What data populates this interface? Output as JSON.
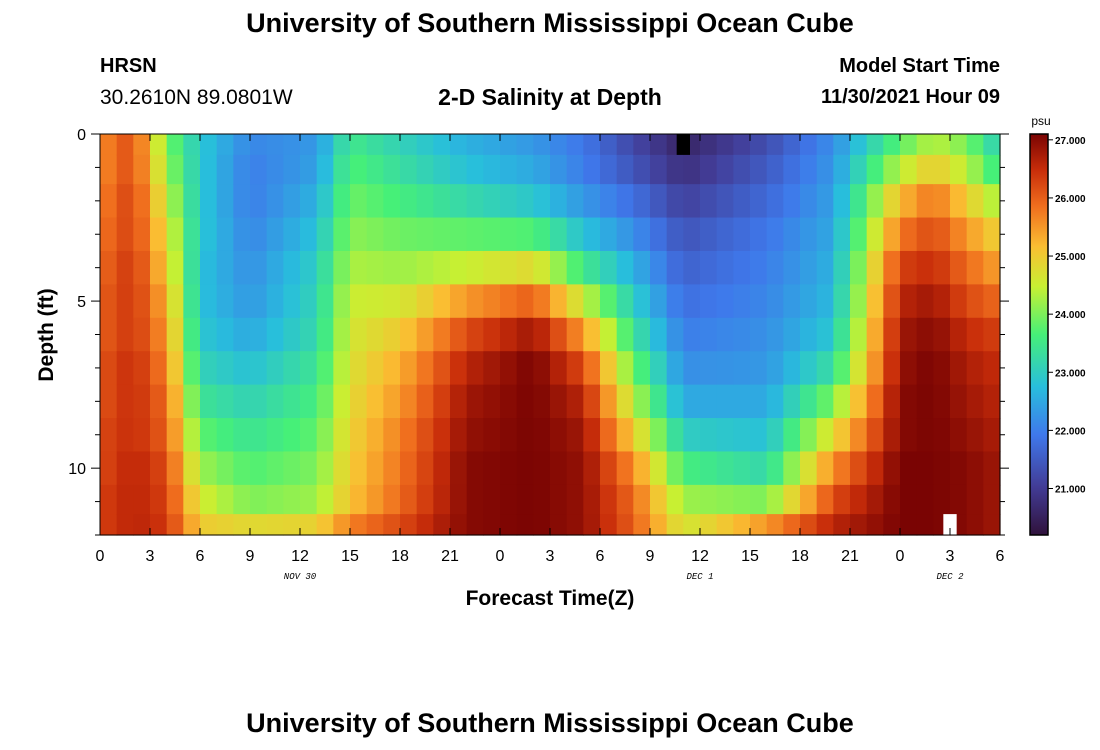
{
  "header": {
    "title": "University of Southern Mississippi Ocean Cube",
    "station": "HRSN",
    "coordinates": "30.2610N  89.0801W",
    "subtitle": "2-D Salinity at Depth",
    "model_start_label": "Model Start Time",
    "model_start_value": "11/30/2021 Hour 09"
  },
  "footer": {
    "title": "University of Southern Mississippi Ocean Cube"
  },
  "chart_data": {
    "type": "heatmap",
    "title": "2-D Salinity at Depth",
    "xlabel": "Forecast Time(Z)",
    "ylabel": "Depth (ft)",
    "x_tick_labels": [
      "0",
      "3",
      "6",
      "9",
      "12",
      "15",
      "18",
      "21",
      "0",
      "3",
      "6",
      "9",
      "12",
      "15",
      "18",
      "21",
      "0",
      "3",
      "6"
    ],
    "x_tick_hours": [
      0,
      3,
      6,
      9,
      12,
      15,
      18,
      21,
      24,
      27,
      30,
      33,
      36,
      39,
      42,
      45,
      48,
      51,
      54
    ],
    "x_range_hours": [
      0,
      54
    ],
    "date_labels": [
      {
        "label": "NOV 30",
        "hour": 12
      },
      {
        "label": "DEC 1",
        "hour": 36
      },
      {
        "label": "DEC 2",
        "hour": 51
      }
    ],
    "y_tick_labels": [
      "0",
      "5",
      "10"
    ],
    "y_tick_values": [
      0,
      5,
      10
    ],
    "y_range_ft": [
      0,
      12
    ],
    "colorbar": {
      "unit": "psu",
      "min": 20.2,
      "max": 27.1,
      "tick_values": [
        21.0,
        22.0,
        23.0,
        24.0,
        25.0,
        26.0,
        27.0
      ],
      "tick_labels": [
        "21.000",
        "22.000",
        "23.000",
        "24.000",
        "25.000",
        "26.000",
        "27.000"
      ]
    },
    "grid": {
      "time_step_hours": 1,
      "depth_rows_ft": [
        0.25,
        1.0,
        2.0,
        3.0,
        4.0,
        5.0,
        6.0,
        7.0,
        8.0,
        9.0,
        10.0,
        11.0,
        11.75
      ],
      "keyframes_hours": [
        0,
        2,
        4,
        6,
        9,
        13,
        15,
        18,
        22,
        26,
        29,
        32,
        35,
        40,
        44,
        48,
        50,
        52,
        54
      ],
      "keyframe_profiles": [
        [
          25.6,
          25.6,
          25.7,
          25.8,
          25.9,
          26.0,
          26.0,
          26.1,
          26.1,
          26.2,
          26.2,
          26.3,
          26.3
        ],
        [
          26.2,
          26.2,
          26.3,
          26.3,
          26.4,
          26.4,
          26.4,
          26.5,
          26.5,
          26.5,
          26.6,
          26.6,
          26.6
        ],
        [
          24.0,
          24.2,
          24.5,
          24.8,
          25.0,
          25.3,
          25.5,
          25.7,
          25.9,
          26.0,
          26.2,
          26.3,
          26.4
        ],
        [
          22.9,
          22.9,
          22.9,
          22.9,
          22.8,
          22.8,
          22.9,
          23.1,
          23.4,
          23.8,
          24.2,
          24.6,
          25.0
        ],
        [
          22.1,
          22.0,
          22.0,
          22.1,
          22.2,
          22.3,
          22.5,
          22.8,
          23.1,
          23.4,
          23.7,
          24.0,
          24.8
        ],
        [
          22.3,
          22.4,
          22.6,
          22.8,
          23.0,
          23.1,
          23.2,
          23.4,
          23.6,
          23.8,
          24.0,
          24.2,
          24.9
        ],
        [
          23.5,
          23.7,
          23.9,
          24.1,
          24.3,
          24.5,
          24.6,
          24.7,
          24.8,
          24.9,
          25.0,
          25.1,
          25.7
        ],
        [
          23.1,
          23.3,
          23.6,
          23.9,
          24.2,
          24.6,
          25.0,
          25.3,
          25.5,
          25.7,
          25.8,
          25.9,
          26.2
        ],
        [
          22.6,
          22.8,
          23.2,
          23.8,
          24.5,
          25.5,
          26.2,
          26.6,
          26.8,
          26.9,
          27.0,
          27.0,
          27.0
        ],
        [
          22.3,
          22.5,
          22.9,
          23.7,
          24.8,
          26.0,
          26.8,
          27.1,
          27.1,
          27.1,
          27.1,
          27.1,
          27.1
        ],
        [
          21.9,
          22.0,
          22.3,
          22.8,
          23.5,
          24.5,
          25.5,
          26.2,
          26.6,
          26.8,
          26.9,
          26.9,
          26.9
        ],
        [
          21.2,
          21.4,
          21.8,
          22.2,
          22.6,
          23.0,
          23.4,
          23.9,
          24.4,
          25.0,
          25.6,
          25.9,
          26.0
        ],
        [
          20.6,
          20.8,
          21.1,
          21.4,
          21.6,
          21.8,
          22.0,
          22.2,
          22.5,
          23.0,
          23.6,
          24.2,
          24.6
        ],
        [
          21.3,
          21.5,
          21.7,
          21.9,
          22.0,
          22.1,
          22.2,
          22.3,
          22.5,
          22.8,
          23.2,
          24.0,
          25.5
        ],
        [
          22.2,
          22.3,
          22.4,
          22.5,
          22.6,
          22.7,
          22.9,
          23.3,
          24.0,
          24.8,
          25.6,
          26.2,
          26.6
        ],
        [
          23.8,
          24.4,
          25.2,
          25.8,
          26.3,
          26.6,
          26.8,
          26.9,
          27.0,
          27.0,
          27.1,
          27.1,
          27.1
        ],
        [
          24.4,
          25.0,
          25.8,
          26.2,
          26.5,
          26.8,
          27.0,
          27.1,
          27.1,
          27.1,
          27.1,
          27.1,
          27.1
        ],
        [
          24.0,
          24.4,
          25.0,
          25.5,
          25.9,
          26.2,
          26.5,
          26.7,
          26.8,
          26.9,
          27.0,
          27.0,
          27.0
        ],
        [
          23.0,
          23.4,
          24.2,
          24.9,
          25.4,
          25.9,
          26.3,
          26.5,
          26.6,
          26.7,
          26.8,
          26.8,
          26.8
        ]
      ],
      "missing_cells": [
        {
          "hour": 35,
          "depth_ft": 0.25,
          "color": "#000000"
        },
        {
          "hour": 51,
          "depth_ft": 11.75,
          "color": "#ffffff"
        }
      ]
    }
  }
}
